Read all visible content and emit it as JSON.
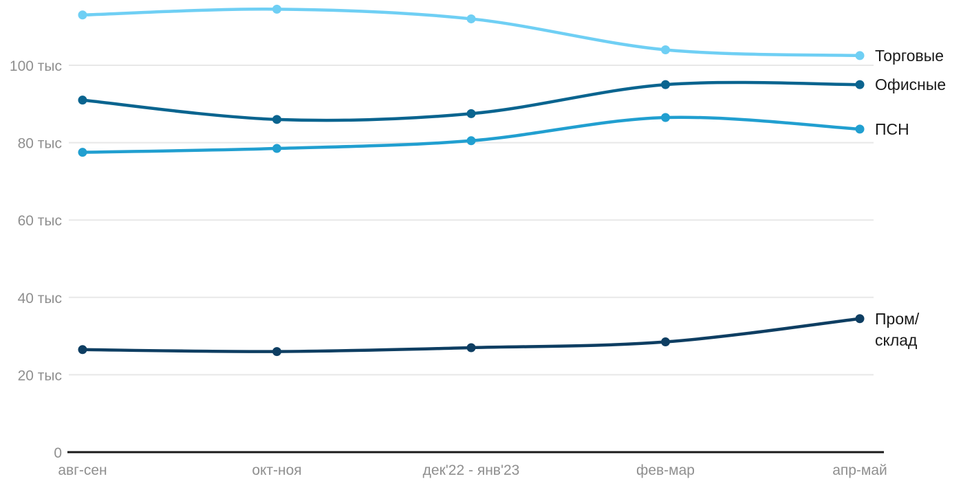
{
  "chart_data": {
    "type": "line",
    "title": "",
    "xlabel": "",
    "ylabel": "",
    "grid": true,
    "legend_position": "right-of-line-ends",
    "categories": [
      "авг-сен",
      "окт-ноя",
      "дек'22 - янв'23",
      "фев-мар",
      "апр-май"
    ],
    "series": [
      {
        "name": "Торговые",
        "color": "#6FCFF4",
        "values": [
          113,
          114.5,
          112,
          104,
          102.5
        ],
        "label_lines": [
          "Торговые"
        ]
      },
      {
        "name": "Офисные",
        "color": "#0A648F",
        "values": [
          91,
          86,
          87.5,
          95,
          95
        ],
        "label_lines": [
          "Офисные"
        ]
      },
      {
        "name": "ПСН",
        "color": "#219FD0",
        "values": [
          77.5,
          78.5,
          80.5,
          86.5,
          83.5
        ],
        "label_lines": [
          "ПСН"
        ]
      },
      {
        "name": "Пром/склад",
        "color": "#0E3E62",
        "values": [
          26.5,
          26,
          27,
          28.5,
          34.5
        ],
        "label_lines": [
          "Пром/",
          "склад"
        ]
      }
    ],
    "yticks": [
      {
        "value": 0,
        "label": "0"
      },
      {
        "value": 20,
        "label": "20 тыс"
      },
      {
        "value": 40,
        "label": "40 тыс"
      },
      {
        "value": 60,
        "label": "60 тыс"
      },
      {
        "value": 80,
        "label": "80 тыс"
      },
      {
        "value": 100,
        "label": "100 тыс"
      }
    ],
    "ylim": [
      0,
      117
    ]
  },
  "colors": {
    "background": "#FFFFFF",
    "grid": "#E8E8E8",
    "axis": "#1A1A1A",
    "tick_label": "#8F8F8F",
    "series_label": "#1A1A1A"
  }
}
